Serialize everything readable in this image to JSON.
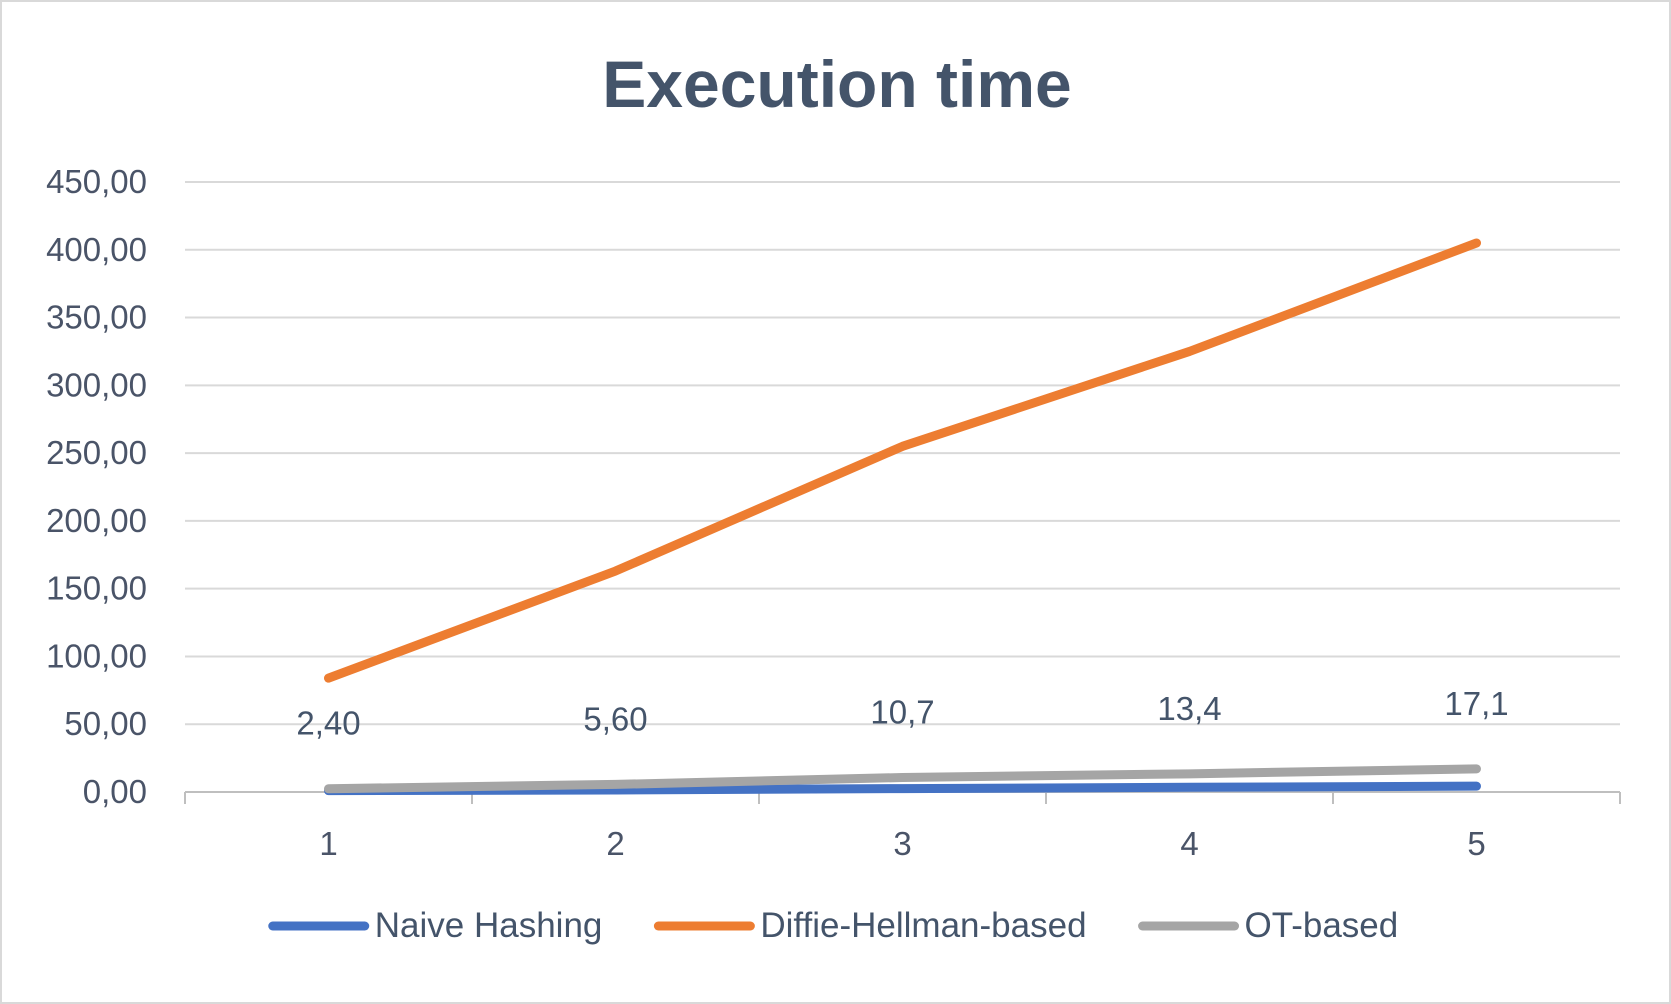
{
  "chart_data": {
    "type": "line",
    "title": "Execution time",
    "xlabel": "",
    "ylabel": "",
    "categories": [
      "1",
      "2",
      "3",
      "4",
      "5"
    ],
    "y_tick_labels": [
      "0,00",
      "50,00",
      "100,00",
      "150,00",
      "200,00",
      "250,00",
      "300,00",
      "350,00",
      "400,00",
      "450,00"
    ],
    "ylim": [
      0,
      450
    ],
    "grid": true,
    "legend_position": "bottom",
    "series": [
      {
        "name": "Naive Hashing",
        "color": "#4472c4",
        "values": [
          1.0,
          1.5,
          2.5,
          3.5,
          4.3
        ]
      },
      {
        "name": "Diffie-Hellman-based",
        "color": "#ed7d31",
        "values": [
          84,
          163,
          255,
          325,
          405
        ]
      },
      {
        "name": "OT-based",
        "color": "#a5a5a5",
        "values": [
          2.4,
          5.6,
          10.7,
          13.4,
          17.1
        ],
        "data_labels": [
          "2,40",
          "5,60",
          "10,7",
          "13,4",
          "17,1"
        ]
      }
    ]
  }
}
